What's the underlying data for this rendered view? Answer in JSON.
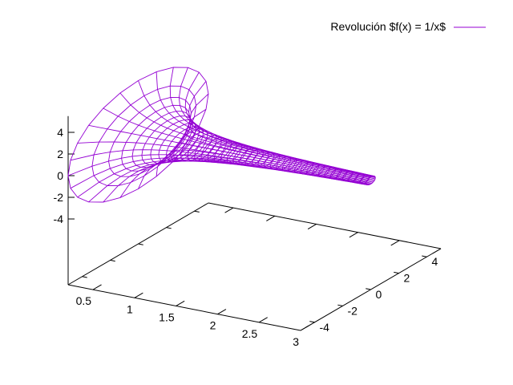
{
  "chart_data": {
    "type": "surface",
    "title": "",
    "xlabel": "",
    "ylabel": "",
    "zlabel": "",
    "xlim": [
      0.2,
      3
    ],
    "ylim": [
      -5,
      5
    ],
    "zlim": [
      -5,
      5
    ],
    "x_ticks": [
      "0.5",
      "1",
      "1.5",
      "2",
      "2.5",
      "3"
    ],
    "y_ticks": [
      "-4",
      "-2",
      "0",
      "2",
      "4"
    ],
    "z_ticks": [
      "-4",
      "-2",
      "0",
      "2",
      "4"
    ],
    "grid": false,
    "legend_position": "top-right",
    "series": [
      {
        "name": "Revolución $f(x) = 1/x$",
        "function": "1/x",
        "color": "#9400d3",
        "x_range": [
          0.2,
          3
        ],
        "u_samples": 40,
        "theta_samples": 24
      }
    ]
  },
  "legend": {
    "label": "Revolución $f(x) = 1/x$"
  }
}
